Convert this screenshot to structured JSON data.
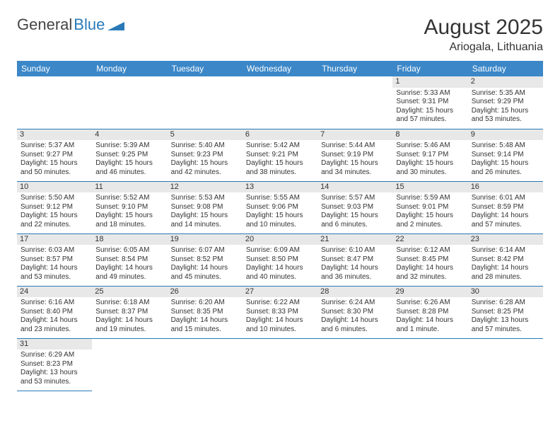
{
  "logo": {
    "text1": "General",
    "text2": "Blue"
  },
  "header": {
    "month": "August 2025",
    "location": "Ariogala, Lithuania"
  },
  "colors": {
    "header_bg": "#3b87c8",
    "rule": "#2a7ab8",
    "daynum_bg": "#e8e8e8"
  },
  "weekdays": [
    "Sunday",
    "Monday",
    "Tuesday",
    "Wednesday",
    "Thursday",
    "Friday",
    "Saturday"
  ],
  "weeks": [
    [
      null,
      null,
      null,
      null,
      null,
      {
        "n": "1",
        "sr": "Sunrise: 5:33 AM",
        "ss": "Sunset: 9:31 PM",
        "dl1": "Daylight: 15 hours",
        "dl2": "and 57 minutes."
      },
      {
        "n": "2",
        "sr": "Sunrise: 5:35 AM",
        "ss": "Sunset: 9:29 PM",
        "dl1": "Daylight: 15 hours",
        "dl2": "and 53 minutes."
      }
    ],
    [
      {
        "n": "3",
        "sr": "Sunrise: 5:37 AM",
        "ss": "Sunset: 9:27 PM",
        "dl1": "Daylight: 15 hours",
        "dl2": "and 50 minutes."
      },
      {
        "n": "4",
        "sr": "Sunrise: 5:39 AM",
        "ss": "Sunset: 9:25 PM",
        "dl1": "Daylight: 15 hours",
        "dl2": "and 46 minutes."
      },
      {
        "n": "5",
        "sr": "Sunrise: 5:40 AM",
        "ss": "Sunset: 9:23 PM",
        "dl1": "Daylight: 15 hours",
        "dl2": "and 42 minutes."
      },
      {
        "n": "6",
        "sr": "Sunrise: 5:42 AM",
        "ss": "Sunset: 9:21 PM",
        "dl1": "Daylight: 15 hours",
        "dl2": "and 38 minutes."
      },
      {
        "n": "7",
        "sr": "Sunrise: 5:44 AM",
        "ss": "Sunset: 9:19 PM",
        "dl1": "Daylight: 15 hours",
        "dl2": "and 34 minutes."
      },
      {
        "n": "8",
        "sr": "Sunrise: 5:46 AM",
        "ss": "Sunset: 9:17 PM",
        "dl1": "Daylight: 15 hours",
        "dl2": "and 30 minutes."
      },
      {
        "n": "9",
        "sr": "Sunrise: 5:48 AM",
        "ss": "Sunset: 9:14 PM",
        "dl1": "Daylight: 15 hours",
        "dl2": "and 26 minutes."
      }
    ],
    [
      {
        "n": "10",
        "sr": "Sunrise: 5:50 AM",
        "ss": "Sunset: 9:12 PM",
        "dl1": "Daylight: 15 hours",
        "dl2": "and 22 minutes."
      },
      {
        "n": "11",
        "sr": "Sunrise: 5:52 AM",
        "ss": "Sunset: 9:10 PM",
        "dl1": "Daylight: 15 hours",
        "dl2": "and 18 minutes."
      },
      {
        "n": "12",
        "sr": "Sunrise: 5:53 AM",
        "ss": "Sunset: 9:08 PM",
        "dl1": "Daylight: 15 hours",
        "dl2": "and 14 minutes."
      },
      {
        "n": "13",
        "sr": "Sunrise: 5:55 AM",
        "ss": "Sunset: 9:06 PM",
        "dl1": "Daylight: 15 hours",
        "dl2": "and 10 minutes."
      },
      {
        "n": "14",
        "sr": "Sunrise: 5:57 AM",
        "ss": "Sunset: 9:03 PM",
        "dl1": "Daylight: 15 hours",
        "dl2": "and 6 minutes."
      },
      {
        "n": "15",
        "sr": "Sunrise: 5:59 AM",
        "ss": "Sunset: 9:01 PM",
        "dl1": "Daylight: 15 hours",
        "dl2": "and 2 minutes."
      },
      {
        "n": "16",
        "sr": "Sunrise: 6:01 AM",
        "ss": "Sunset: 8:59 PM",
        "dl1": "Daylight: 14 hours",
        "dl2": "and 57 minutes."
      }
    ],
    [
      {
        "n": "17",
        "sr": "Sunrise: 6:03 AM",
        "ss": "Sunset: 8:57 PM",
        "dl1": "Daylight: 14 hours",
        "dl2": "and 53 minutes."
      },
      {
        "n": "18",
        "sr": "Sunrise: 6:05 AM",
        "ss": "Sunset: 8:54 PM",
        "dl1": "Daylight: 14 hours",
        "dl2": "and 49 minutes."
      },
      {
        "n": "19",
        "sr": "Sunrise: 6:07 AM",
        "ss": "Sunset: 8:52 PM",
        "dl1": "Daylight: 14 hours",
        "dl2": "and 45 minutes."
      },
      {
        "n": "20",
        "sr": "Sunrise: 6:09 AM",
        "ss": "Sunset: 8:50 PM",
        "dl1": "Daylight: 14 hours",
        "dl2": "and 40 minutes."
      },
      {
        "n": "21",
        "sr": "Sunrise: 6:10 AM",
        "ss": "Sunset: 8:47 PM",
        "dl1": "Daylight: 14 hours",
        "dl2": "and 36 minutes."
      },
      {
        "n": "22",
        "sr": "Sunrise: 6:12 AM",
        "ss": "Sunset: 8:45 PM",
        "dl1": "Daylight: 14 hours",
        "dl2": "and 32 minutes."
      },
      {
        "n": "23",
        "sr": "Sunrise: 6:14 AM",
        "ss": "Sunset: 8:42 PM",
        "dl1": "Daylight: 14 hours",
        "dl2": "and 28 minutes."
      }
    ],
    [
      {
        "n": "24",
        "sr": "Sunrise: 6:16 AM",
        "ss": "Sunset: 8:40 PM",
        "dl1": "Daylight: 14 hours",
        "dl2": "and 23 minutes."
      },
      {
        "n": "25",
        "sr": "Sunrise: 6:18 AM",
        "ss": "Sunset: 8:37 PM",
        "dl1": "Daylight: 14 hours",
        "dl2": "and 19 minutes."
      },
      {
        "n": "26",
        "sr": "Sunrise: 6:20 AM",
        "ss": "Sunset: 8:35 PM",
        "dl1": "Daylight: 14 hours",
        "dl2": "and 15 minutes."
      },
      {
        "n": "27",
        "sr": "Sunrise: 6:22 AM",
        "ss": "Sunset: 8:33 PM",
        "dl1": "Daylight: 14 hours",
        "dl2": "and 10 minutes."
      },
      {
        "n": "28",
        "sr": "Sunrise: 6:24 AM",
        "ss": "Sunset: 8:30 PM",
        "dl1": "Daylight: 14 hours",
        "dl2": "and 6 minutes."
      },
      {
        "n": "29",
        "sr": "Sunrise: 6:26 AM",
        "ss": "Sunset: 8:28 PM",
        "dl1": "Daylight: 14 hours",
        "dl2": "and 1 minute."
      },
      {
        "n": "30",
        "sr": "Sunrise: 6:28 AM",
        "ss": "Sunset: 8:25 PM",
        "dl1": "Daylight: 13 hours",
        "dl2": "and 57 minutes."
      }
    ],
    [
      {
        "n": "31",
        "sr": "Sunrise: 6:29 AM",
        "ss": "Sunset: 8:23 PM",
        "dl1": "Daylight: 13 hours",
        "dl2": "and 53 minutes."
      },
      null,
      null,
      null,
      null,
      null,
      null
    ]
  ]
}
